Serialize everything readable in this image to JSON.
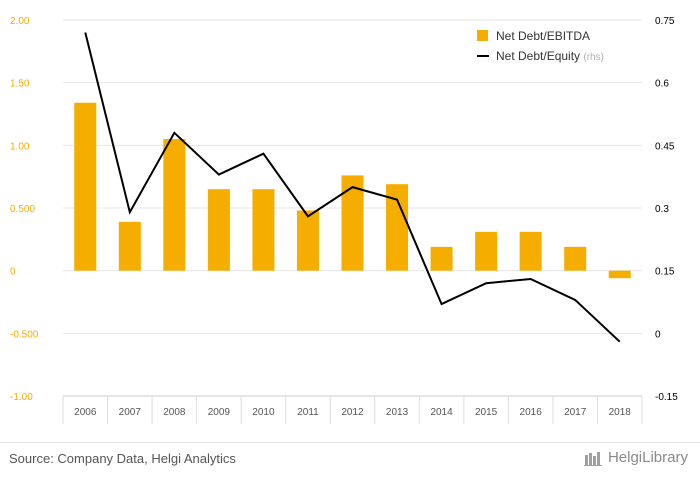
{
  "chart_data": {
    "type": "bar",
    "categories": [
      "2006",
      "2007",
      "2008",
      "2009",
      "2010",
      "2011",
      "2012",
      "2013",
      "2014",
      "2015",
      "2016",
      "2017",
      "2018"
    ],
    "series": [
      {
        "name": "Net Debt/EBITDA",
        "type": "bar",
        "axis": "left",
        "color": "#f5ad00",
        "values": [
          1.34,
          0.39,
          1.05,
          0.65,
          0.65,
          0.48,
          0.76,
          0.69,
          0.19,
          0.31,
          0.31,
          0.19,
          -0.06
        ]
      },
      {
        "name": "Net Debt/Equity",
        "name_suffix": "(rhs)",
        "type": "line",
        "axis": "right",
        "color": "#000000",
        "values": [
          0.72,
          0.29,
          0.48,
          0.38,
          0.43,
          0.28,
          0.35,
          0.32,
          0.07,
          0.12,
          0.13,
          0.08,
          -0.02
        ]
      }
    ],
    "y_left": {
      "ylim": [
        -1.0,
        2.0
      ],
      "ticks": [
        2.0,
        1.5,
        1.0,
        0.5,
        0,
        -0.5,
        -1.0
      ],
      "tick_labels": [
        "2.00",
        "1.50",
        "1.00",
        "0.500",
        "0",
        "-0.500",
        "-1.00"
      ],
      "color": "#f5ad00"
    },
    "y_right": {
      "ylim": [
        -0.15,
        0.75
      ],
      "ticks": [
        0.75,
        0.6,
        0.45,
        0.3,
        0.15,
        0,
        -0.15
      ],
      "tick_labels": [
        "0.75",
        "0.6",
        "0.45",
        "0.3",
        "0.15",
        "0",
        "-0.15"
      ],
      "color": "#000000"
    },
    "grid": true,
    "legend": "top-right"
  },
  "footer": {
    "source": "Source: Company Data, Helgi Analytics",
    "brand": "HelgiLibrary"
  }
}
